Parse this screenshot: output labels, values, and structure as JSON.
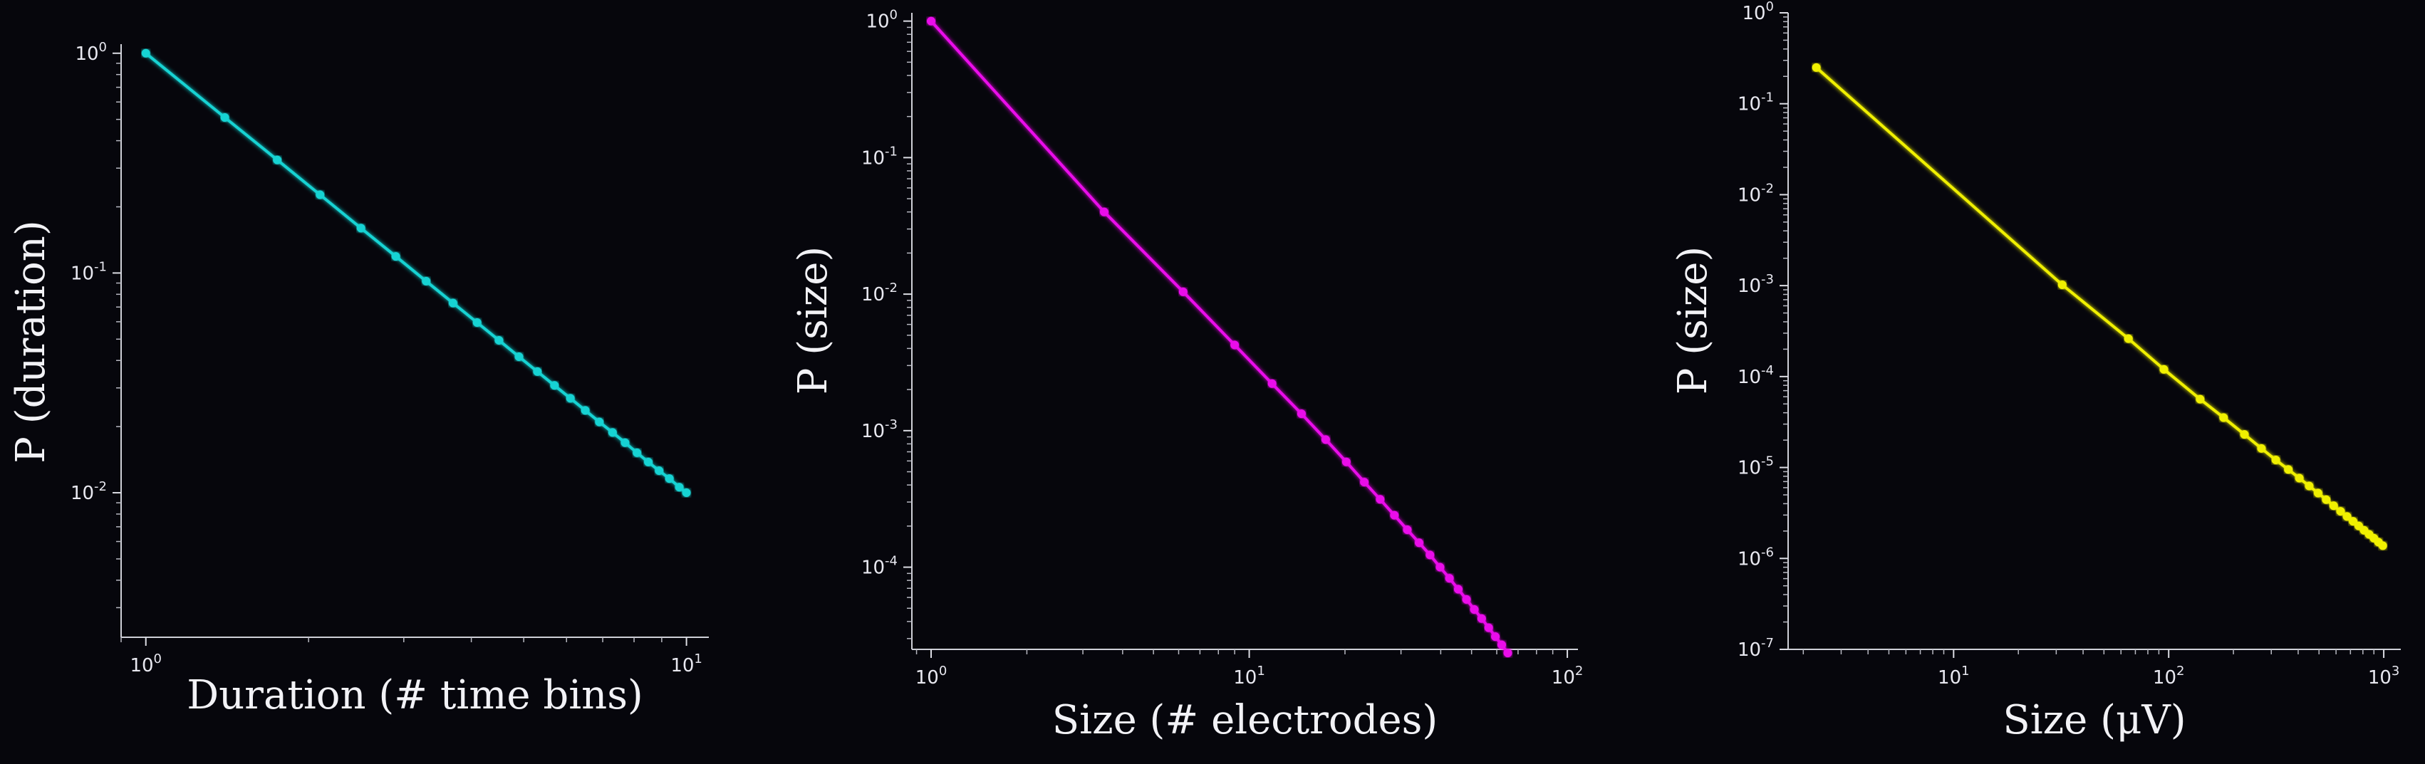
{
  "chart_data": [
    {
      "type": "line",
      "scale": "log-log",
      "xlabel": "Duration (# time bins)",
      "ylabel": "P (duration)",
      "xlim": [
        0.9,
        11
      ],
      "ylim": [
        0.0022,
        1.1
      ],
      "xticks": [
        {
          "base": "10",
          "exp": "0",
          "value": 1
        },
        {
          "base": "10",
          "exp": "1",
          "value": 10
        }
      ],
      "yticks": [
        {
          "base": "10",
          "exp": "0",
          "value": 1
        },
        {
          "base": "10",
          "exp": "-1",
          "value": 0.1
        },
        {
          "base": "10",
          "exp": "-2",
          "value": 0.01
        }
      ],
      "color": "#19d3d3",
      "series": [
        {
          "x": [
            1,
            1.4,
            1.75,
            2.1,
            2.5,
            2.9,
            3.3,
            3.7,
            4.1,
            4.5,
            4.9,
            5.3,
            5.7,
            6.1,
            6.5,
            6.9,
            7.3,
            7.7,
            8.1,
            8.5,
            8.9,
            9.3,
            9.7,
            10
          ],
          "y": [
            1,
            0.51,
            0.327,
            0.227,
            0.16,
            0.119,
            0.0918,
            0.073,
            0.0595,
            0.0494,
            0.0416,
            0.0356,
            0.0308,
            0.0269,
            0.0237,
            0.021,
            0.0188,
            0.0169,
            0.0152,
            0.0138,
            0.0126,
            0.0116,
            0.0106,
            0.01
          ]
        }
      ]
    },
    {
      "type": "line",
      "scale": "log-log",
      "xlabel": "Size (# electrodes)",
      "ylabel": "P (size)",
      "xlim": [
        0.87,
        108
      ],
      "ylim": [
        2.5e-05,
        1.15
      ],
      "xticks": [
        {
          "base": "10",
          "exp": "0",
          "value": 1
        },
        {
          "base": "10",
          "exp": "1",
          "value": 10
        },
        {
          "base": "10",
          "exp": "2",
          "value": 100
        }
      ],
      "yticks": [
        {
          "base": "10",
          "exp": "0",
          "value": 1
        },
        {
          "base": "10",
          "exp": "-1",
          "value": 0.1
        },
        {
          "base": "10",
          "exp": "-2",
          "value": 0.01
        },
        {
          "base": "10",
          "exp": "-3",
          "value": 0.001
        },
        {
          "base": "10",
          "exp": "-4",
          "value": 0.0001
        }
      ],
      "color": "#ea10ea",
      "series": [
        {
          "x": [
            1,
            3.5,
            6.2,
            9,
            11.8,
            14.6,
            17.4,
            20.2,
            23,
            25.8,
            28.6,
            31.4,
            34.2,
            37,
            39.8,
            42.6,
            45.4,
            48.2,
            51,
            53.8,
            56.6,
            59.4,
            62.2,
            65
          ],
          "y": [
            1,
            0.04,
            0.0104,
            0.00424,
            0.00221,
            0.00133,
            0.00086,
            0.00059,
            0.00042,
            0.000314,
            0.00024,
            0.000188,
            0.000151,
            0.000123,
            0.0001,
            8.3e-05,
            6.9e-05,
            5.8e-05,
            4.9e-05,
            4.2e-05,
            3.6e-05,
            3.1e-05,
            2.7e-05,
            2.35e-05
          ]
        }
      ]
    },
    {
      "type": "line",
      "scale": "log-log",
      "xlabel": "Size (μV)",
      "ylabel": "P (size)",
      "xlim": [
        1.7,
        1200
      ],
      "ylim": [
        1e-07,
        1
      ],
      "xticks": [
        {
          "base": "10",
          "exp": "1",
          "value": 10
        },
        {
          "base": "10",
          "exp": "2",
          "value": 100
        },
        {
          "base": "10",
          "exp": "3",
          "value": 1000
        }
      ],
      "yticks": [
        {
          "base": "10",
          "exp": "0",
          "value": 1
        },
        {
          "base": "10",
          "exp": "-1",
          "value": 0.1
        },
        {
          "base": "10",
          "exp": "-2",
          "value": 0.01
        },
        {
          "base": "10",
          "exp": "-3",
          "value": 0.001
        },
        {
          "base": "10",
          "exp": "-4",
          "value": 0.0001
        },
        {
          "base": "10",
          "exp": "-5",
          "value": 1e-05
        },
        {
          "base": "10",
          "exp": "-6",
          "value": 1e-06
        },
        {
          "base": "10",
          "exp": "-7",
          "value": 1e-07
        }
      ],
      "color": "#f0f000",
      "series": [
        {
          "x": [
            2.3,
            32,
            65,
            95,
            140,
            180,
            225,
            270,
            315,
            360,
            405,
            450,
            495,
            540,
            585,
            630,
            675,
            720,
            765,
            810,
            855,
            900,
            945,
            990
          ],
          "y": [
            0.25,
            0.00102,
            0.000261,
            0.00012,
            5.64e-05,
            3.54e-05,
            2.31e-05,
            1.62e-05,
            1.21e-05,
            9.51e-06,
            7.64e-06,
            6.27e-06,
            5.23e-06,
            4.43e-06,
            3.8e-06,
            3.3e-06,
            2.89e-06,
            2.56e-06,
            2.28e-06,
            2.04e-06,
            1.84e-06,
            1.67e-06,
            1.51e-06,
            1.38e-06
          ]
        }
      ]
    }
  ]
}
